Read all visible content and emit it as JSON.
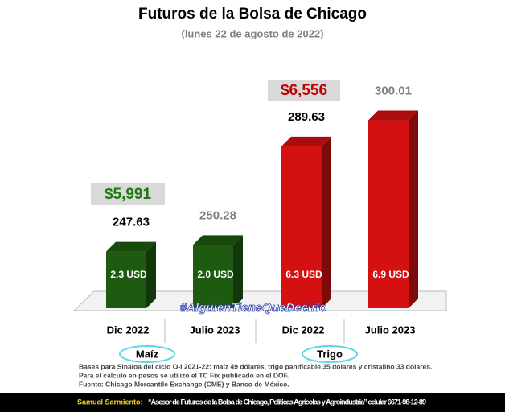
{
  "chart_data": {
    "type": "bar3d",
    "title": "Futuros de la Bolsa de Chicago",
    "subtitle": "(lunes 22 de agosto de 2022)",
    "categories": [
      "Dic 2022",
      "Julio 2023",
      "Dic 2022",
      "Julio 2023"
    ],
    "values": [
      247.63,
      250.28,
      289.63,
      300.01
    ],
    "colors": [
      "#1e5b10",
      "#1e5b10",
      "#d41010",
      "#d41010"
    ],
    "value_label_colors": [
      "#000000",
      "#808080",
      "#000000",
      "#808080"
    ],
    "inner_labels": [
      "2.3 USD",
      "2.0 USD",
      "6.3 USD",
      "6.9 USD"
    ],
    "ylim": [
      225,
      305
    ],
    "groups": [
      {
        "name": "Maíz",
        "price": "$5,991",
        "price_color": "#1e7a10"
      },
      {
        "name": "Trigo",
        "price": "$6,556",
        "price_color": "#c00000"
      }
    ],
    "watermark": "#AlguienTieneQueDecirlo",
    "notes": [
      "Bases para Sinaloa del ciclo O-I 2021-22: maíz 49 dólares, trigo panificable 35 dólares y cristalino 33 dólares.",
      "Para el cálculo en pesos se utilizó el TC Fix publicado en el DOF.",
      "Fuente: Chicago Mercantile Exchange (CME) y Banco de México."
    ],
    "footer_name": "Samuel Sarmiento:",
    "footer_text": "“Asesor de Futuros de la Bolsa de Chicago, Políticas Agrícolas y Agroindustria” celular 6671-98-12-89"
  }
}
